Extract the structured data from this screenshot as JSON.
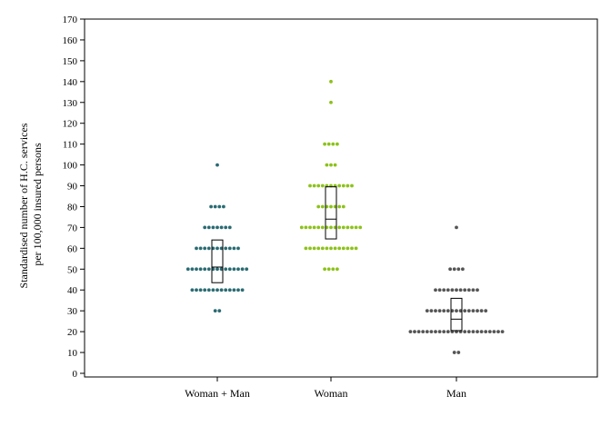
{
  "chart_data": {
    "type": "scatter",
    "subtype": "dot-strip with box (median and quartiles)",
    "title": "",
    "xlabel": "",
    "ylabel_lines": [
      "Standardised number of H.C. services",
      "per 100,000 insured persons"
    ],
    "ylim": [
      0,
      170
    ],
    "yticks": [
      0,
      10,
      20,
      30,
      40,
      50,
      60,
      70,
      80,
      90,
      100,
      110,
      120,
      130,
      140,
      150,
      160,
      170
    ],
    "grid": false,
    "categories": [
      "Woman + Man",
      "Woman",
      "Man"
    ],
    "series": [
      {
        "category": "Woman + Man",
        "color": "#2a6b73",
        "points": [
          {
            "y": 100,
            "count": 1
          },
          {
            "y": 80,
            "count": 4
          },
          {
            "y": 70,
            "count": 7
          },
          {
            "y": 60,
            "count": 11
          },
          {
            "y": 50,
            "count": 15
          },
          {
            "y": 40,
            "count": 13
          },
          {
            "y": 30,
            "count": 2
          }
        ],
        "box": {
          "q1": 43.5,
          "median": 51,
          "q3": 64
        }
      },
      {
        "category": "Woman",
        "color": "#8cc21a",
        "points": [
          {
            "y": 140,
            "count": 1
          },
          {
            "y": 130,
            "count": 1
          },
          {
            "y": 110,
            "count": 4
          },
          {
            "y": 100,
            "count": 3
          },
          {
            "y": 90,
            "count": 11
          },
          {
            "y": 80,
            "count": 7
          },
          {
            "y": 70,
            "count": 15
          },
          {
            "y": 60,
            "count": 13
          },
          {
            "y": 50,
            "count": 4
          }
        ],
        "box": {
          "q1": 64.5,
          "median": 74,
          "q3": 89.5
        }
      },
      {
        "category": "Man",
        "color": "#555555",
        "points": [
          {
            "y": 70,
            "count": 1
          },
          {
            "y": 50,
            "count": 4
          },
          {
            "y": 40,
            "count": 11
          },
          {
            "y": 30,
            "count": 15
          },
          {
            "y": 20,
            "count": 23
          },
          {
            "y": 10,
            "count": 2
          }
        ],
        "box": {
          "q1": 20.5,
          "median": 26,
          "q3": 36
        }
      }
    ]
  }
}
